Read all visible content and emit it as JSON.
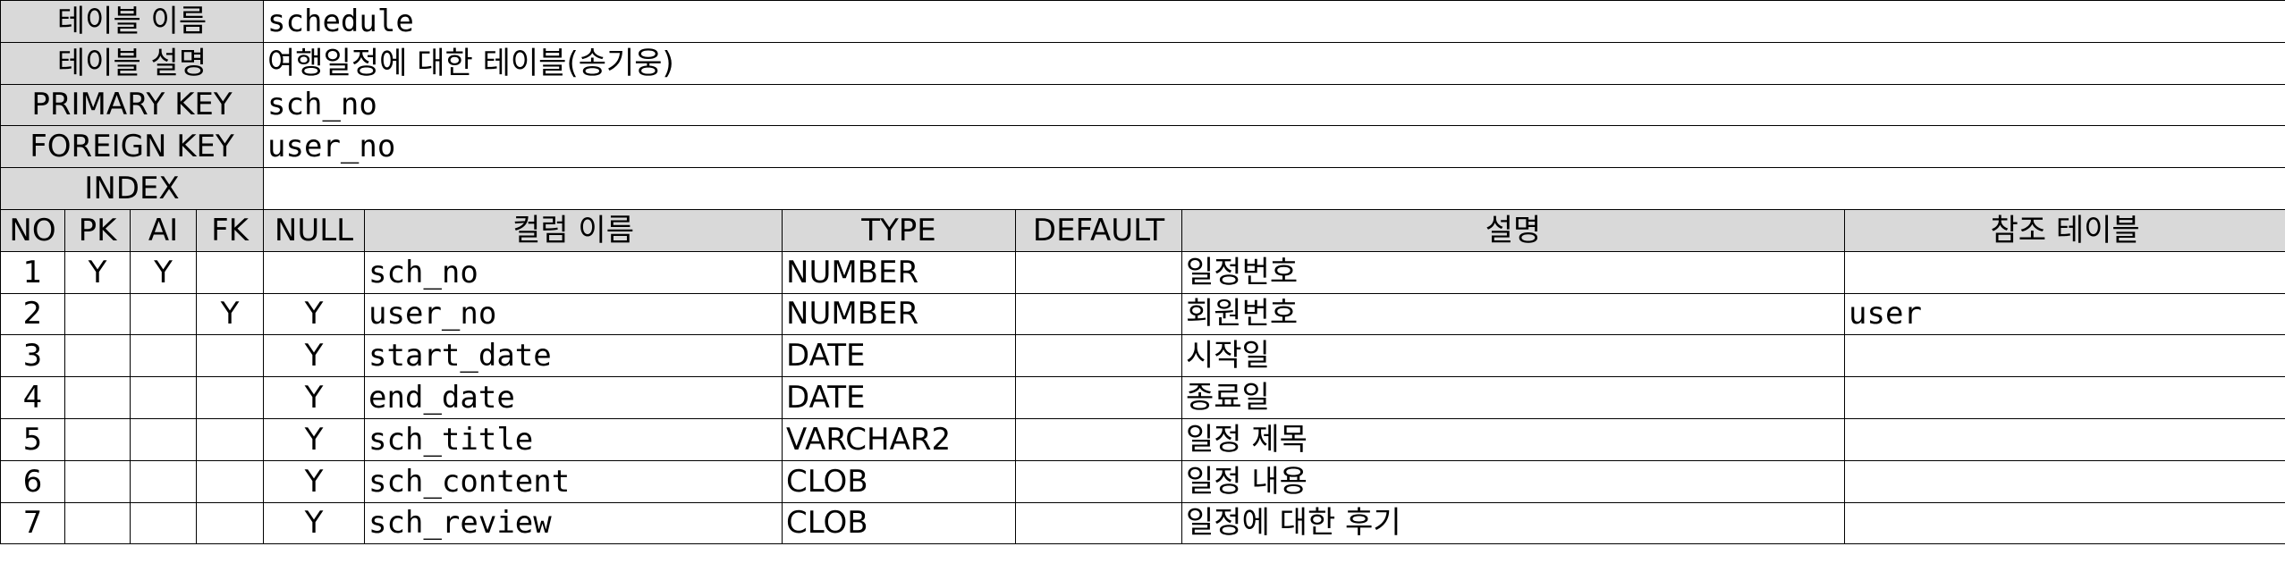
{
  "table_info": {
    "name_label": "테이블 이름",
    "name_value": "schedule",
    "desc_label": "테이블 설명",
    "desc_value": "여행일정에 대한 테이블(송기웅)",
    "pk_label": "PRIMARY KEY",
    "pk_value": "sch_no",
    "fk_label": "FOREIGN KEY",
    "fk_value": "user_no",
    "index_label": "INDEX",
    "index_value": ""
  },
  "columns_header": {
    "no": "NO",
    "pk": "PK",
    "ai": "AI",
    "fk": "FK",
    "null": "NULL",
    "column_name": "컬럼 이름",
    "type": "TYPE",
    "default": "DEFAULT",
    "description": "설명",
    "ref_table": "참조 테이블"
  },
  "rows": [
    {
      "no": "1",
      "pk": "Y",
      "ai": "Y",
      "fk": "",
      "null": "",
      "name": "sch_no",
      "type": "NUMBER",
      "default": "",
      "desc": "일정번호",
      "ref": ""
    },
    {
      "no": "2",
      "pk": "",
      "ai": "",
      "fk": "Y",
      "null": "Y",
      "name": "user_no",
      "type": "NUMBER",
      "default": "",
      "desc": "회원번호",
      "ref": "user"
    },
    {
      "no": "3",
      "pk": "",
      "ai": "",
      "fk": "",
      "null": "Y",
      "name": "start_date",
      "type": "DATE",
      "default": "",
      "desc": "시작일",
      "ref": ""
    },
    {
      "no": "4",
      "pk": "",
      "ai": "",
      "fk": "",
      "null": "Y",
      "name": "end_date",
      "type": "DATE",
      "default": "",
      "desc": "종료일",
      "ref": ""
    },
    {
      "no": "5",
      "pk": "",
      "ai": "",
      "fk": "",
      "null": "Y",
      "name": "sch_title",
      "type": "VARCHAR2",
      "default": "",
      "desc": "일정 제목",
      "ref": ""
    },
    {
      "no": "6",
      "pk": "",
      "ai": "",
      "fk": "",
      "null": "Y",
      "name": "sch_content",
      "type": "CLOB",
      "default": "",
      "desc": "일정 내용",
      "ref": ""
    },
    {
      "no": "7",
      "pk": "",
      "ai": "",
      "fk": "",
      "null": "Y",
      "name": "sch_review",
      "type": "CLOB",
      "default": "",
      "desc": "일정에 대한 후기",
      "ref": ""
    }
  ],
  "colors": {
    "header_fill": "#d9d9d9",
    "grid_line": "#000000",
    "background": "#ffffff"
  }
}
